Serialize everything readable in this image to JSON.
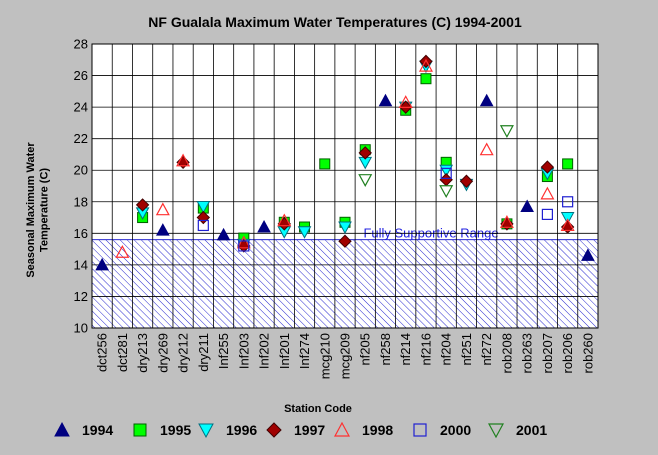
{
  "chart_data": {
    "type": "scatter",
    "title": "NF Gualala Maximum Water Temperatures (C) 1994-2001",
    "xlabel": "Station Code",
    "ylabel": "Seasonal Maximum Water Temperature  (C)",
    "ylim": [
      10,
      28
    ],
    "yticks": [
      "10",
      "12",
      "14",
      "16",
      "18",
      "20",
      "22",
      "24",
      "26",
      "28"
    ],
    "grid": true,
    "legend_position": "bottom",
    "categories": [
      "dct256",
      "dct281",
      "dry213",
      "dry269",
      "dry212",
      "dry211",
      "Inf255",
      "Inf203",
      "Inf202",
      "Inf201",
      "Inf274",
      "mcg210",
      "mcg209",
      "nf205",
      "nf258",
      "nf214",
      "nf216",
      "nf204",
      "nf251",
      "nf272",
      "rob208",
      "rob263",
      "rob207",
      "rob206",
      "rob260"
    ],
    "band": {
      "label": "Fully Supportive Range",
      "from": 10,
      "to": 15.6,
      "color": "#2a2ad0"
    },
    "series": [
      {
        "name": "1994",
        "marker": "triangle-up",
        "fill": "#000080",
        "stroke": "#000080",
        "values": [
          14.0,
          null,
          null,
          16.2,
          null,
          null,
          15.9,
          null,
          16.4,
          null,
          null,
          null,
          null,
          null,
          24.4,
          null,
          null,
          null,
          null,
          24.4,
          null,
          17.7,
          null,
          null,
          14.6
        ]
      },
      {
        "name": "1995",
        "marker": "square",
        "fill": "#00ff00",
        "stroke": "#006000",
        "values": [
          null,
          null,
          17.0,
          null,
          null,
          17.6,
          null,
          15.7,
          null,
          16.7,
          16.4,
          20.4,
          16.7,
          21.3,
          null,
          23.8,
          25.8,
          20.5,
          null,
          null,
          16.6,
          null,
          19.6,
          20.4,
          null
        ]
      },
      {
        "name": "1996",
        "marker": "triangle-down",
        "fill": "#00ffff",
        "stroke": "#007080",
        "values": [
          null,
          null,
          17.3,
          null,
          null,
          17.7,
          null,
          15.3,
          null,
          16.1,
          16.1,
          null,
          16.4,
          20.5,
          null,
          24.0,
          26.6,
          20.0,
          19.1,
          null,
          null,
          null,
          19.8,
          17.0,
          null
        ]
      },
      {
        "name": "1997",
        "marker": "diamond",
        "fill": "#a00000",
        "stroke": "#400000",
        "values": [
          null,
          null,
          17.8,
          null,
          20.5,
          17.0,
          null,
          15.2,
          null,
          16.6,
          null,
          null,
          15.5,
          21.1,
          null,
          24.0,
          26.9,
          19.4,
          19.3,
          null,
          16.6,
          null,
          20.2,
          16.4,
          null
        ]
      },
      {
        "name": "1998",
        "marker": "triangle-up-open",
        "fill": "none",
        "stroke": "#ff3030",
        "values": [
          null,
          14.8,
          null,
          17.5,
          20.6,
          null,
          null,
          15.4,
          null,
          16.8,
          null,
          null,
          null,
          null,
          null,
          24.3,
          26.6,
          null,
          null,
          21.3,
          16.7,
          null,
          18.5,
          16.5,
          null
        ]
      },
      {
        "name": "2000",
        "marker": "square-open",
        "fill": "none",
        "stroke": "#2020d0",
        "values": [
          null,
          null,
          null,
          null,
          null,
          16.5,
          null,
          15.2,
          null,
          null,
          null,
          null,
          null,
          null,
          null,
          null,
          null,
          19.8,
          null,
          null,
          null,
          null,
          17.2,
          18.0,
          null
        ]
      },
      {
        "name": "2001",
        "marker": "triangle-down-open",
        "fill": "none",
        "stroke": "#208020",
        "values": [
          null,
          null,
          null,
          null,
          null,
          null,
          null,
          null,
          null,
          null,
          null,
          null,
          null,
          19.4,
          null,
          null,
          null,
          18.7,
          null,
          null,
          22.5,
          null,
          null,
          null,
          null
        ]
      }
    ]
  }
}
